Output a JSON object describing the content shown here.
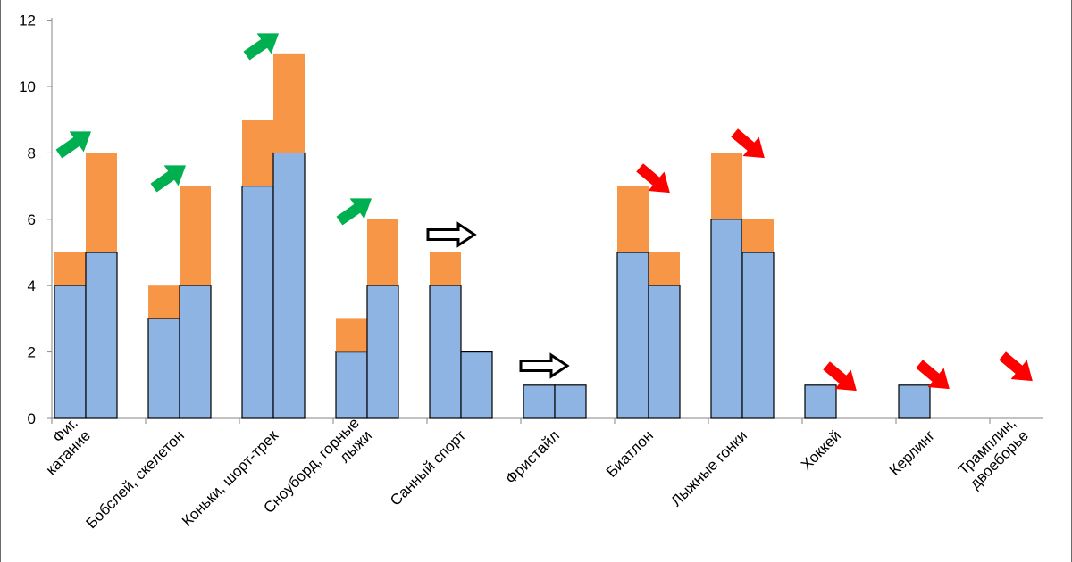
{
  "chart_data": {
    "type": "bar",
    "title": "",
    "xlabel": "",
    "ylabel": "",
    "ylim": [
      0,
      12
    ],
    "yticks": [
      "0",
      "2",
      "4",
      "6",
      "8",
      "10",
      "12"
    ],
    "grid": false,
    "legend": "none",
    "categories": [
      {
        "label": [
          "Фиг.",
          "катание"
        ],
        "trend": "up"
      },
      {
        "label": [
          "Бобслей, скелетон"
        ],
        "trend": "up"
      },
      {
        "label": [
          "Коньки, шорт-трек"
        ],
        "trend": "up"
      },
      {
        "label": [
          "Сноуборд, горные",
          "лыжи"
        ],
        "trend": "up"
      },
      {
        "label": [
          "Санный спорт"
        ],
        "trend": "flat"
      },
      {
        "label": [
          "Фристайл"
        ],
        "trend": "flat"
      },
      {
        "label": [
          "Биатлон"
        ],
        "trend": "down"
      },
      {
        "label": [
          "Лыжные гонки"
        ],
        "trend": "down"
      },
      {
        "label": [
          "Хоккей"
        ],
        "trend": "down"
      },
      {
        "label": [
          "Керлинг"
        ],
        "trend": "down"
      },
      {
        "label": [
          "Трамплин,",
          "двоеборье"
        ],
        "trend": "down"
      }
    ],
    "groups": [
      {
        "bars": [
          {
            "base": 4,
            "top": 5
          },
          {
            "base": 5,
            "top": 8
          }
        ]
      },
      {
        "bars": [
          {
            "base": 3,
            "top": 4
          },
          {
            "base": 4,
            "top": 7
          }
        ]
      },
      {
        "bars": [
          {
            "base": 7,
            "top": 9
          },
          {
            "base": 8,
            "top": 11
          }
        ]
      },
      {
        "bars": [
          {
            "base": 2,
            "top": 3
          },
          {
            "base": 4,
            "top": 6
          }
        ]
      },
      {
        "bars": [
          {
            "base": 4,
            "top": 5
          },
          {
            "base": 2,
            "top": 2
          }
        ]
      },
      {
        "bars": [
          {
            "base": 1,
            "top": 1
          },
          {
            "base": 1,
            "top": 1
          }
        ]
      },
      {
        "bars": [
          {
            "base": 5,
            "top": 7
          },
          {
            "base": 4,
            "top": 5
          }
        ]
      },
      {
        "bars": [
          {
            "base": 6,
            "top": 8
          },
          {
            "base": 5,
            "top": 6
          }
        ]
      },
      {
        "bars": [
          {
            "base": 1,
            "top": 1
          },
          {
            "base": 0,
            "top": 0
          }
        ]
      },
      {
        "bars": [
          {
            "base": 1,
            "top": 1
          },
          {
            "base": 0,
            "top": 0
          }
        ]
      },
      {
        "bars": [
          {
            "base": 0,
            "top": 0
          },
          {
            "base": 0,
            "top": 0
          }
        ]
      }
    ],
    "colors": {
      "base": "#8eb4e3",
      "extra": "#f79646",
      "bar_outline": "#000000",
      "up_arrow": "#00b050",
      "down_arrow": "#ff0000",
      "flat_arrow_fill": "#ffffff",
      "flat_arrow_outline": "#000000"
    }
  }
}
